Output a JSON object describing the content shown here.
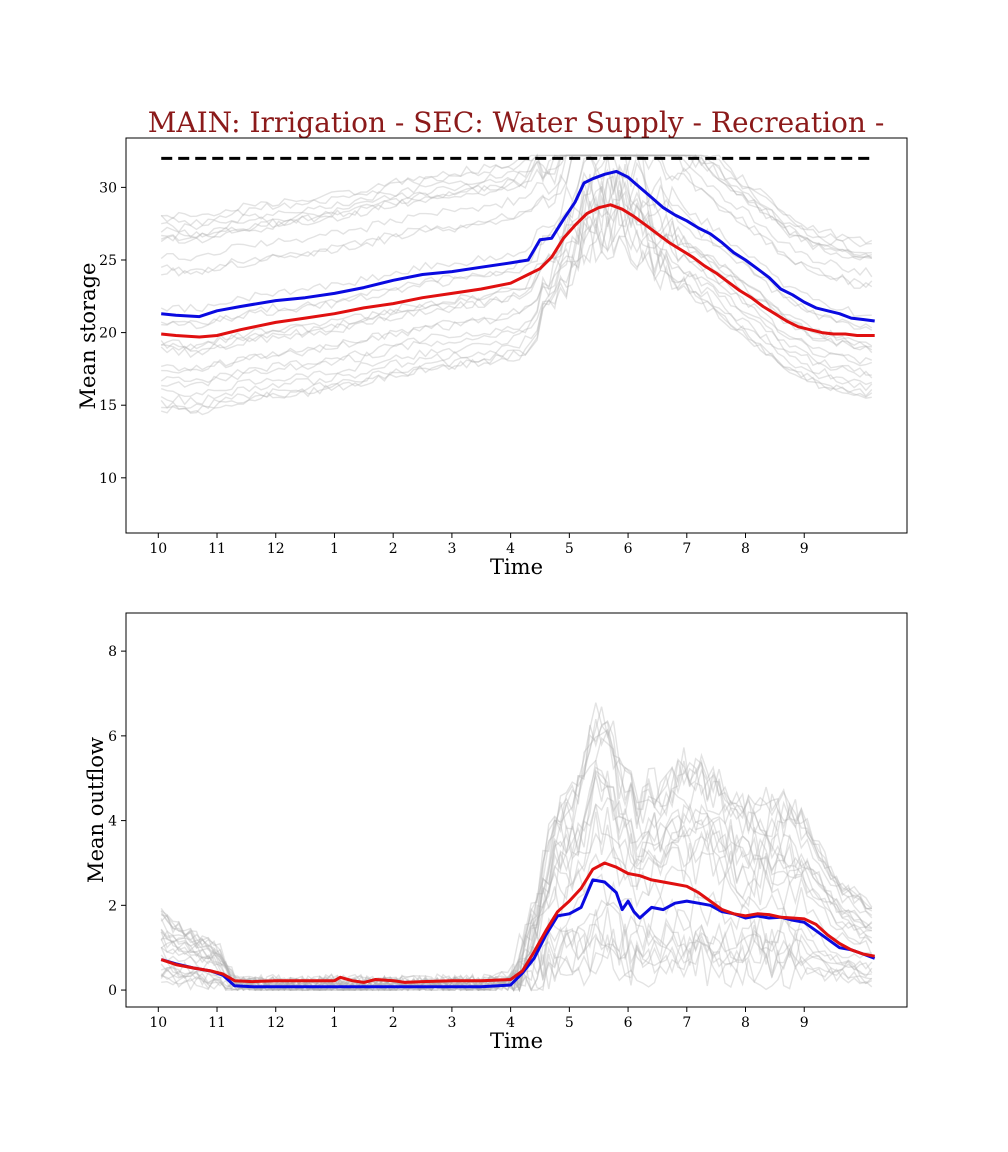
{
  "title": "MAIN: Irrigation - SEC: Water Supply - Recreation -",
  "title_color": "#8b1a1a",
  "chart_data": [
    {
      "type": "line",
      "xlabel": "Time",
      "ylabel": "Mean storage",
      "xticks": [
        "10",
        "11",
        "12",
        "1",
        "2",
        "3",
        "4",
        "5",
        "6",
        "7",
        "8",
        "9"
      ],
      "xtick_positions": [
        0,
        1,
        2,
        3,
        4,
        5,
        6,
        7,
        8,
        9,
        10,
        11
      ],
      "xlim": [
        -0.55,
        12.75
      ],
      "yticks": [
        10,
        15,
        20,
        25,
        30
      ],
      "ylim": [
        6.2,
        33.4
      ],
      "grid": false,
      "reference_line": {
        "y": 32,
        "x_start": 0.05,
        "x_end": 12.2,
        "style": "dashed",
        "color": "#000000"
      },
      "series": [
        {
          "color": "#0a0ae0",
          "x": [
            0.05,
            0.3,
            0.7,
            1.0,
            1.4,
            2.0,
            2.5,
            3.0,
            3.5,
            4.0,
            4.5,
            5.0,
            5.5,
            6.0,
            6.3,
            6.5,
            6.7,
            6.9,
            7.1,
            7.25,
            7.4,
            7.6,
            7.8,
            8.0,
            8.2,
            8.4,
            8.6,
            8.8,
            9.0,
            9.2,
            9.4,
            9.6,
            9.8,
            10.0,
            10.2,
            10.4,
            10.6,
            10.8,
            11.0,
            11.2,
            11.4,
            11.6,
            11.8,
            12.0,
            12.2
          ],
          "y": [
            21.3,
            21.2,
            21.1,
            21.5,
            21.8,
            22.2,
            22.4,
            22.7,
            23.1,
            23.6,
            24.0,
            24.2,
            24.5,
            24.8,
            25.0,
            26.4,
            26.5,
            27.8,
            29.0,
            30.3,
            30.6,
            30.9,
            31.1,
            30.7,
            30.0,
            29.3,
            28.6,
            28.1,
            27.7,
            27.2,
            26.8,
            26.2,
            25.5,
            25.0,
            24.4,
            23.8,
            23.0,
            22.6,
            22.1,
            21.7,
            21.5,
            21.3,
            21.0,
            20.9,
            20.8
          ]
        },
        {
          "color": "#e01010",
          "x": [
            0.05,
            0.3,
            0.7,
            1.0,
            1.4,
            2.0,
            2.5,
            3.0,
            3.5,
            4.0,
            4.5,
            5.0,
            5.5,
            6.0,
            6.3,
            6.5,
            6.7,
            6.9,
            7.1,
            7.3,
            7.5,
            7.7,
            7.9,
            8.1,
            8.3,
            8.5,
            8.7,
            8.9,
            9.1,
            9.3,
            9.5,
            9.7,
            9.9,
            10.1,
            10.3,
            10.5,
            10.7,
            10.9,
            11.1,
            11.3,
            11.5,
            11.7,
            11.9,
            12.2
          ],
          "y": [
            19.9,
            19.8,
            19.7,
            19.8,
            20.2,
            20.7,
            21.0,
            21.3,
            21.7,
            22.0,
            22.4,
            22.7,
            23.0,
            23.4,
            24.0,
            24.4,
            25.2,
            26.5,
            27.4,
            28.2,
            28.6,
            28.8,
            28.5,
            28.0,
            27.4,
            26.8,
            26.2,
            25.7,
            25.2,
            24.6,
            24.1,
            23.5,
            22.9,
            22.4,
            21.8,
            21.3,
            20.8,
            20.4,
            20.2,
            20.0,
            19.9,
            19.9,
            19.8,
            19.8
          ]
        }
      ]
    },
    {
      "type": "line",
      "xlabel": "Time",
      "ylabel": "Mean outflow",
      "xticks": [
        "10",
        "11",
        "12",
        "1",
        "2",
        "3",
        "4",
        "5",
        "6",
        "7",
        "8",
        "9"
      ],
      "xtick_positions": [
        0,
        1,
        2,
        3,
        4,
        5,
        6,
        7,
        8,
        9,
        10,
        11
      ],
      "xlim": [
        -0.55,
        12.75
      ],
      "yticks": [
        0,
        2,
        4,
        6,
        8
      ],
      "ylim": [
        -0.4,
        8.9
      ],
      "grid": false,
      "series": [
        {
          "color": "#0a0ae0",
          "x": [
            0.05,
            0.3,
            0.6,
            0.9,
            1.1,
            1.3,
            1.6,
            2.0,
            3.0,
            4.0,
            5.0,
            5.5,
            6.0,
            6.2,
            6.4,
            6.6,
            6.8,
            7.0,
            7.2,
            7.4,
            7.6,
            7.8,
            7.9,
            8.0,
            8.1,
            8.2,
            8.4,
            8.6,
            8.8,
            9.0,
            9.2,
            9.4,
            9.6,
            9.8,
            10.0,
            10.2,
            10.4,
            10.6,
            10.8,
            11.0,
            11.2,
            11.4,
            11.6,
            11.8,
            12.0,
            12.2
          ],
          "y": [
            0.72,
            0.62,
            0.52,
            0.45,
            0.35,
            0.1,
            0.08,
            0.08,
            0.08,
            0.08,
            0.08,
            0.08,
            0.12,
            0.4,
            0.75,
            1.3,
            1.75,
            1.8,
            1.95,
            2.6,
            2.55,
            2.3,
            1.9,
            2.1,
            1.85,
            1.7,
            1.95,
            1.9,
            2.05,
            2.1,
            2.05,
            2.0,
            1.85,
            1.8,
            1.7,
            1.75,
            1.7,
            1.72,
            1.65,
            1.6,
            1.4,
            1.2,
            1.0,
            0.95,
            0.85,
            0.75
          ]
        },
        {
          "color": "#e01010",
          "x": [
            0.05,
            0.3,
            0.6,
            0.9,
            1.1,
            1.3,
            1.6,
            2.0,
            2.5,
            3.0,
            3.1,
            3.3,
            3.5,
            3.7,
            4.0,
            4.2,
            4.5,
            5.0,
            5.5,
            6.0,
            6.2,
            6.4,
            6.6,
            6.8,
            7.0,
            7.2,
            7.4,
            7.6,
            7.8,
            8.0,
            8.2,
            8.4,
            8.6,
            8.8,
            9.0,
            9.2,
            9.4,
            9.6,
            9.8,
            10.0,
            10.2,
            10.4,
            10.6,
            10.8,
            11.0,
            11.2,
            11.4,
            11.6,
            11.8,
            12.0,
            12.2
          ],
          "y": [
            0.72,
            0.6,
            0.52,
            0.45,
            0.38,
            0.22,
            0.2,
            0.22,
            0.22,
            0.22,
            0.3,
            0.22,
            0.18,
            0.25,
            0.22,
            0.18,
            0.2,
            0.22,
            0.22,
            0.25,
            0.45,
            0.9,
            1.4,
            1.85,
            2.1,
            2.4,
            2.85,
            3.0,
            2.9,
            2.75,
            2.7,
            2.6,
            2.55,
            2.5,
            2.45,
            2.3,
            2.1,
            1.9,
            1.8,
            1.75,
            1.8,
            1.78,
            1.72,
            1.7,
            1.68,
            1.55,
            1.3,
            1.1,
            0.95,
            0.85,
            0.8
          ]
        }
      ]
    }
  ]
}
